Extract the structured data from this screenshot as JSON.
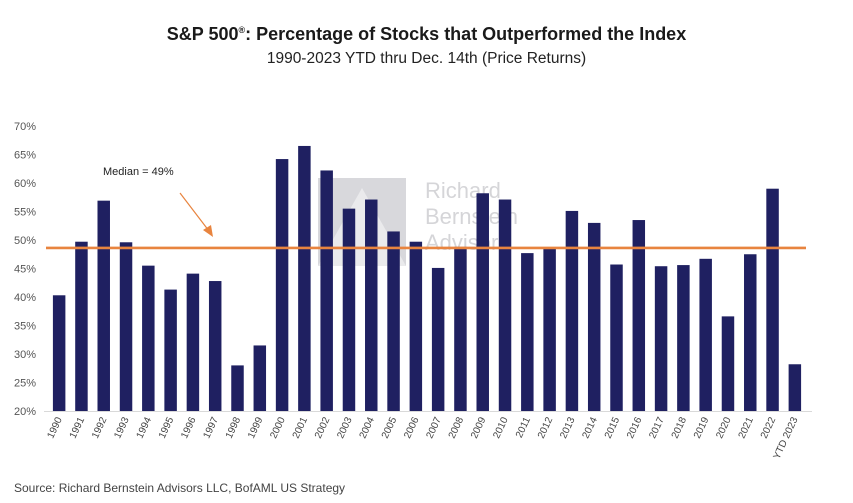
{
  "title": "S&P 500",
  "title_superscript": "®",
  "title_rest": ":  Percentage of Stocks that Outperformed the Index",
  "subtitle": "1990-2023 YTD thru Dec. 14th (Price Returns)",
  "source": "Source: Richard Bernstein Advisors LLC, BofAML US Strategy",
  "watermark": {
    "lines": [
      "Richard",
      "Bernstein",
      "Advisors"
    ]
  },
  "colors": {
    "bar": "#1f2061",
    "median_line": "#e8843f",
    "arrow": "#e8843f",
    "axis": "#d9d9d9"
  },
  "chart_data": {
    "type": "bar",
    "title": "S&P 500®: Percentage of Stocks that Outperformed the Index",
    "subtitle": "1990-2023 YTD thru Dec. 14th (Price Returns)",
    "xlabel": "",
    "ylabel": "",
    "ylim": [
      20,
      70
    ],
    "yticks": [
      20,
      25,
      30,
      35,
      40,
      45,
      50,
      55,
      60,
      65,
      70
    ],
    "ytick_labels": [
      "20%",
      "25%",
      "30%",
      "35%",
      "40%",
      "45%",
      "50%",
      "55%",
      "60%",
      "65%",
      "70%"
    ],
    "grid": false,
    "categories": [
      "1990",
      "1991",
      "1992",
      "1993",
      "1994",
      "1995",
      "1996",
      "1997",
      "1998",
      "1999",
      "2000",
      "2001",
      "2002",
      "2003",
      "2004",
      "2005",
      "2006",
      "2007",
      "2008",
      "2009",
      "2010",
      "2011",
      "2012",
      "2013",
      "2014",
      "2015",
      "2016",
      "2017",
      "2018",
      "2019",
      "2020",
      "2021",
      "2022",
      "YTD 2023"
    ],
    "values": [
      40.3,
      49.7,
      56.9,
      49.6,
      45.5,
      41.3,
      44.1,
      42.8,
      28.0,
      31.5,
      64.2,
      66.5,
      62.2,
      55.5,
      57.1,
      51.5,
      49.7,
      45.1,
      48.8,
      58.2,
      57.1,
      47.7,
      48.5,
      55.1,
      53.0,
      45.7,
      53.5,
      45.4,
      45.6,
      46.7,
      36.6,
      47.5,
      59.0,
      28.2
    ],
    "median": {
      "value": 48.6,
      "label": "Median = 49%"
    }
  }
}
